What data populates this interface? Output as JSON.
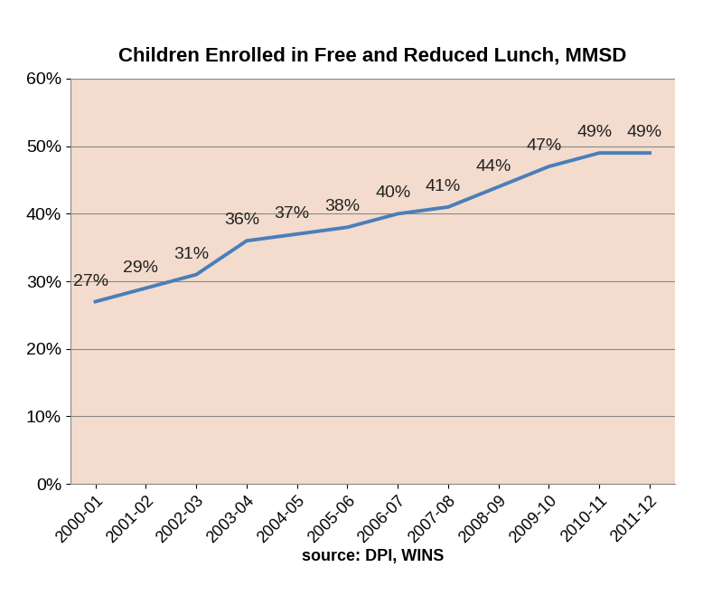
{
  "chart_data": {
    "type": "line",
    "title": "Children Enrolled in Free and Reduced Lunch, MMSD",
    "x_label": "source: DPI, WINS",
    "categories": [
      "2000-01",
      "2001-02",
      "2002-03",
      "2003-04",
      "2004-05",
      "2005-06",
      "2006-07",
      "2007-08",
      "2008-09",
      "2009-10",
      "2010-11",
      "2011-12"
    ],
    "values": [
      27,
      29,
      31,
      36,
      37,
      38,
      40,
      41,
      44,
      47,
      49,
      49
    ],
    "value_labels": [
      "27%",
      "29%",
      "31%",
      "36%",
      "37%",
      "38%",
      "40%",
      "41%",
      "44%",
      "47%",
      "49%",
      "49%"
    ],
    "color": "#4a7ebb",
    "line_style": "solid",
    "ylim": [
      0,
      60
    ],
    "yticks": [
      {
        "value": 0,
        "label": "0%"
      },
      {
        "value": 10,
        "label": "10%"
      },
      {
        "value": 20,
        "label": "20%"
      },
      {
        "value": 30,
        "label": "30%"
      },
      {
        "value": 40,
        "label": "40%"
      },
      {
        "value": 50,
        "label": "50%"
      },
      {
        "value": 60,
        "label": "60%"
      }
    ],
    "grid": true,
    "data_labels": true
  }
}
